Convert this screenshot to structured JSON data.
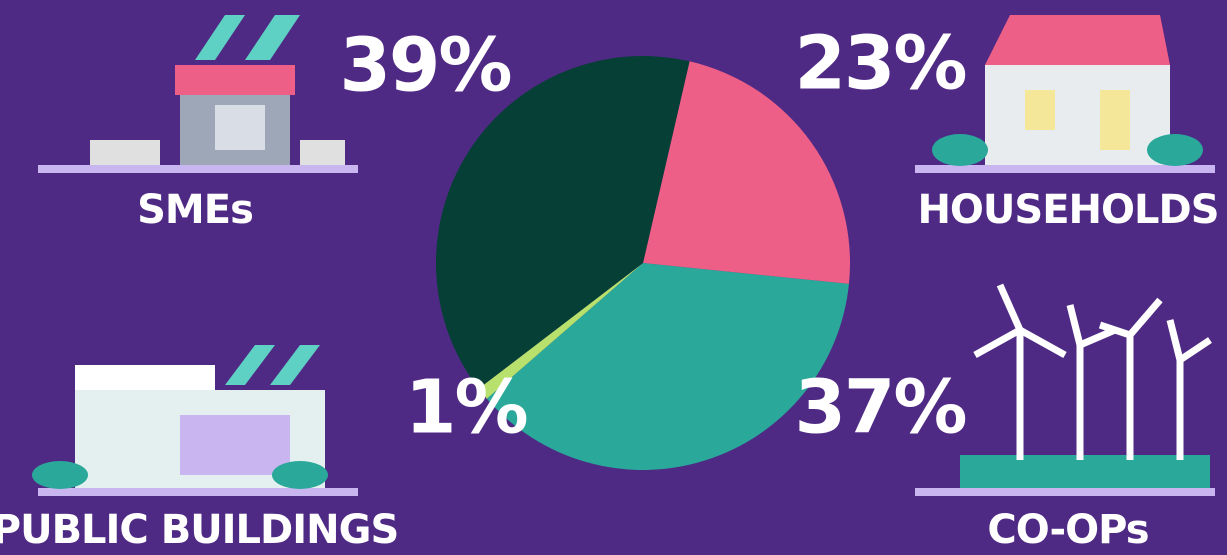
{
  "chart_data": {
    "type": "pie",
    "categories": [
      "HOUSEHOLDS",
      "CO-OPs",
      "PUBLIC BUILDINGS",
      "SMEs"
    ],
    "values": [
      23,
      37,
      1,
      39
    ],
    "value_labels": [
      "23%",
      "37%",
      "1%",
      "39%"
    ],
    "colors": [
      "#ee5f87",
      "#2aa89a",
      "#b8e06c",
      "#063f35"
    ]
  }
}
